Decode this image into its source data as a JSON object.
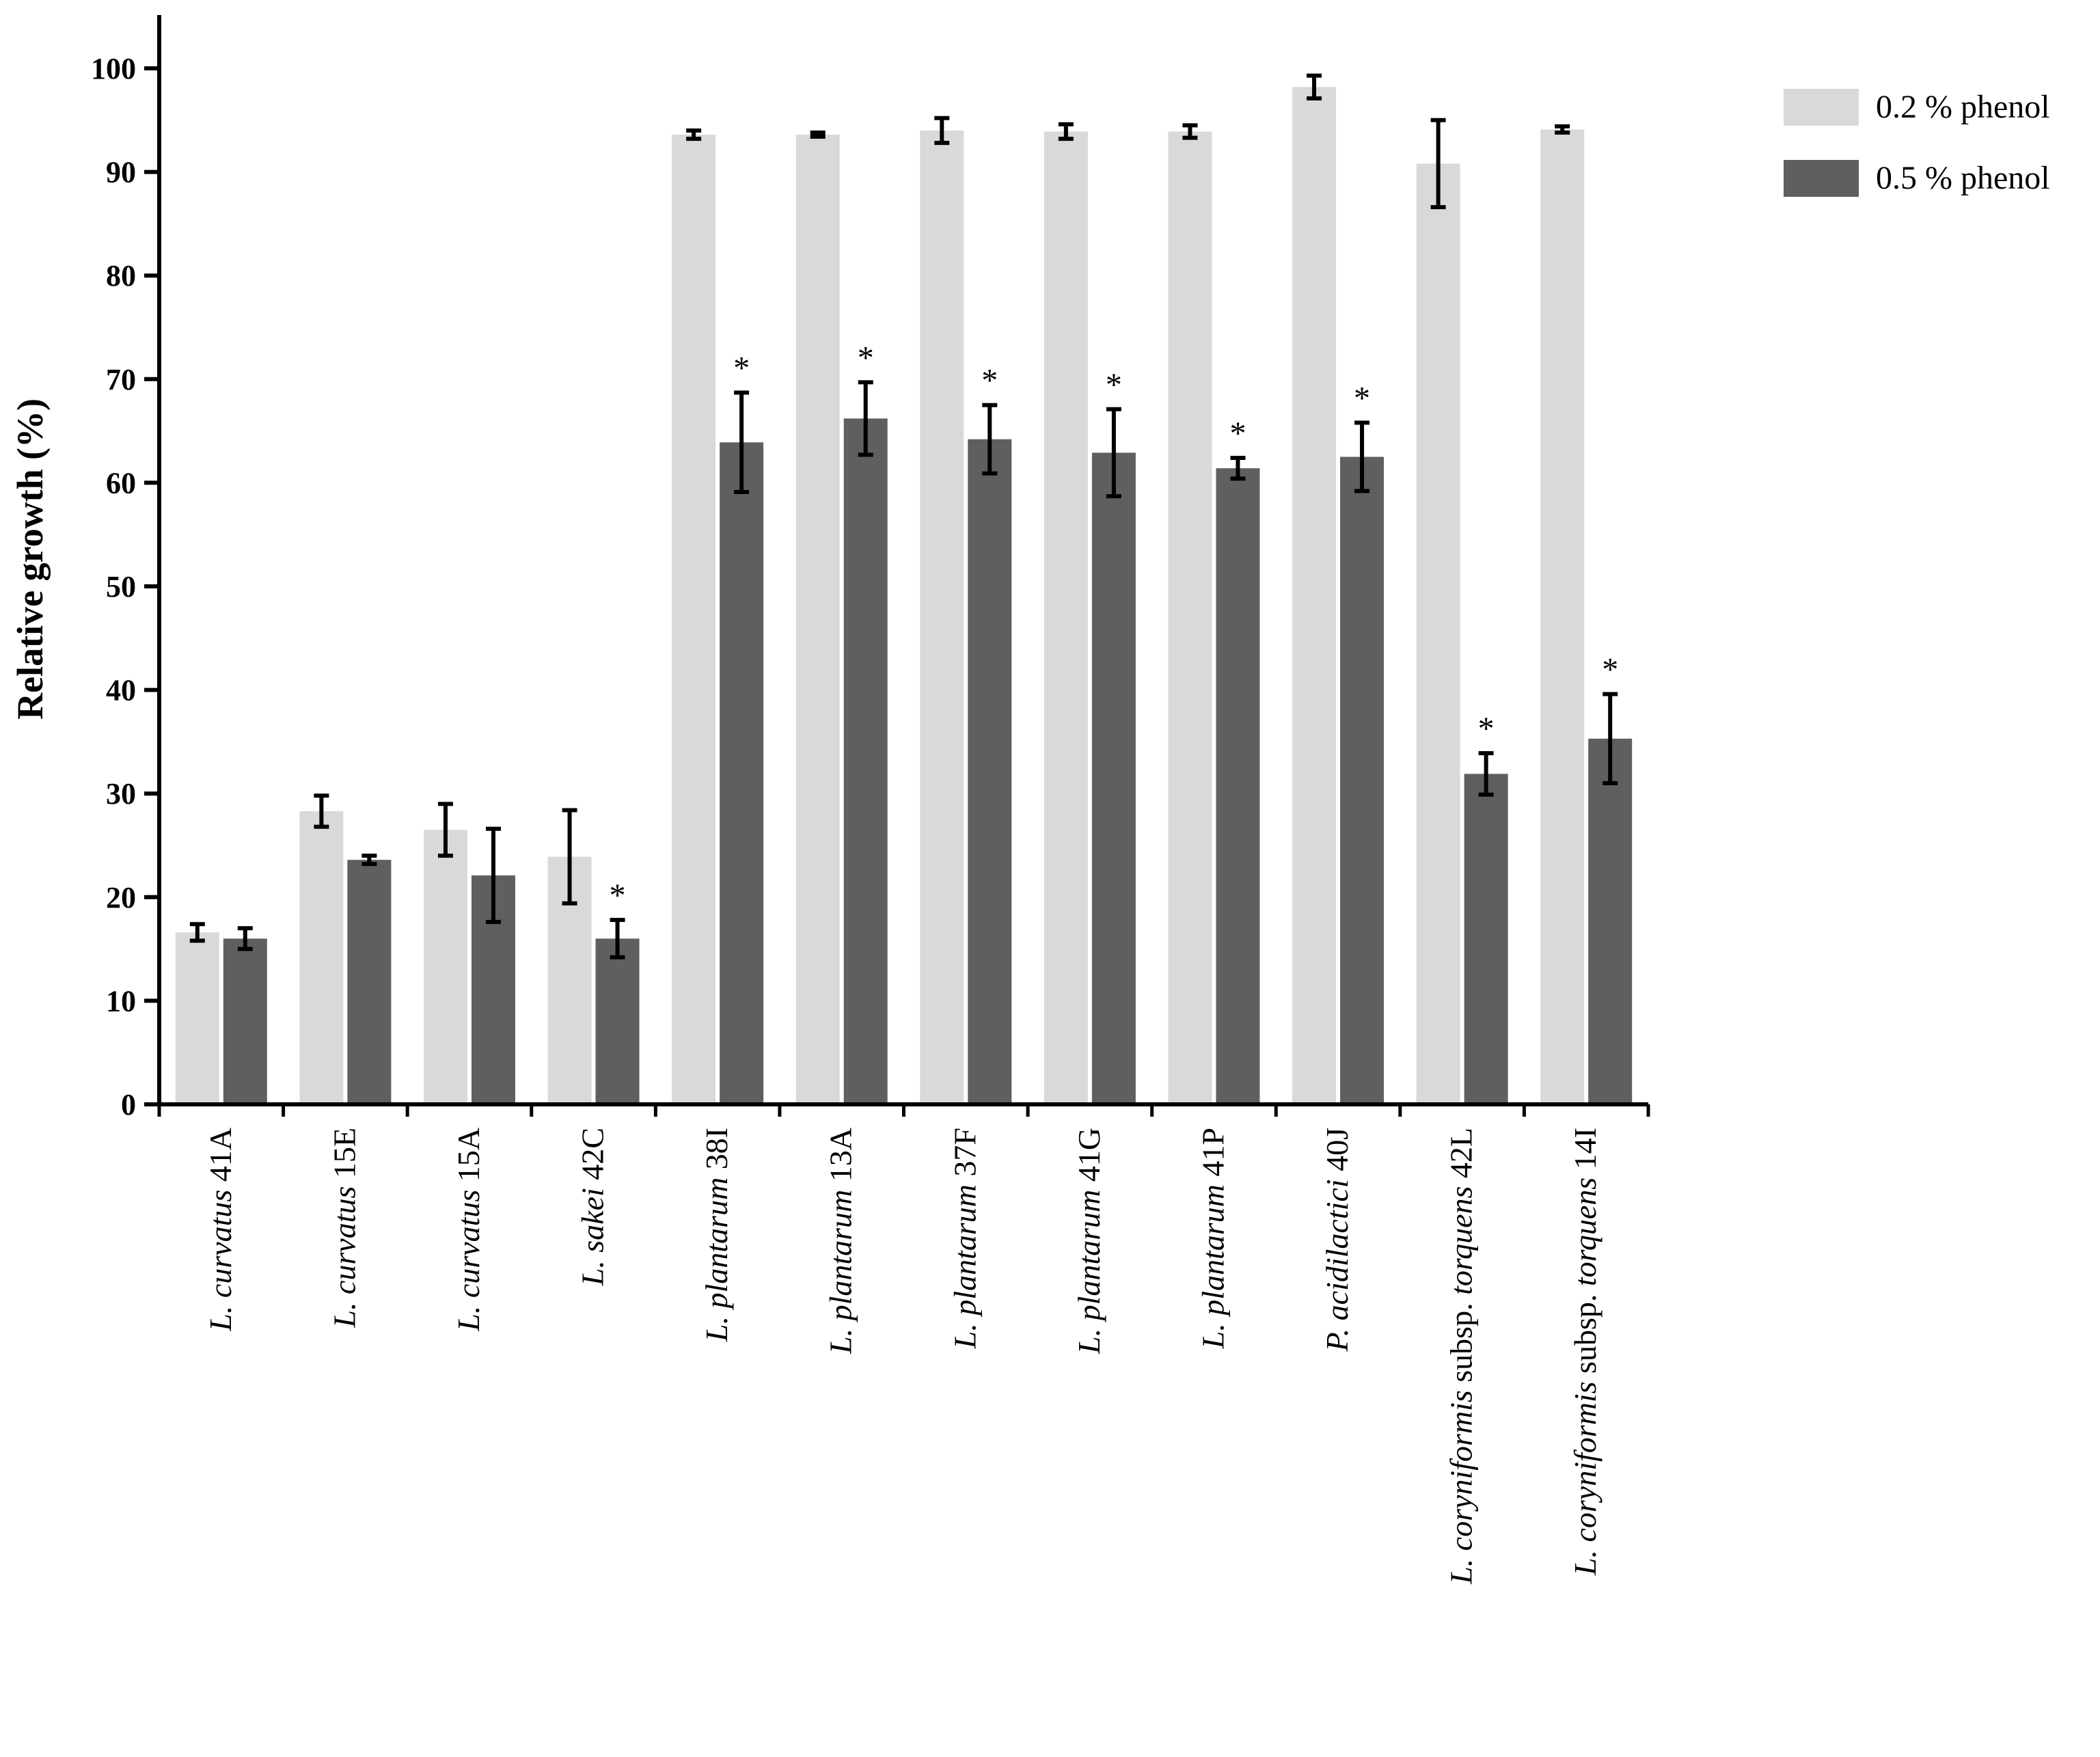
{
  "chart_data": {
    "type": "bar",
    "title": "",
    "xlabel": "",
    "ylabel": "Relative growth (%)",
    "ylim": [
      0,
      100
    ],
    "yticks": [
      0,
      10,
      20,
      30,
      40,
      50,
      60,
      70,
      80,
      90,
      100
    ],
    "grid": false,
    "legend_position": "top-right",
    "categories": [
      {
        "italic": "L. curvatus",
        "rest": " 41A"
      },
      {
        "italic": "L. curvatus",
        "rest": " 15E"
      },
      {
        "italic": "L. curvatus",
        "rest": " 15A"
      },
      {
        "italic": "L. sakei",
        "rest": " 42C"
      },
      {
        "italic": "L. plantarum",
        "rest": " 38I"
      },
      {
        "italic": "L. plantarum",
        "rest": " 13A"
      },
      {
        "italic": "L. plantarum",
        "rest": " 37F"
      },
      {
        "italic": "L. plantarum",
        "rest": " 41G"
      },
      {
        "italic": "L. plantarum",
        "rest": " 41P"
      },
      {
        "italic": "P. acidilactici",
        "rest": " 40J"
      },
      {
        "italic": "L. coryniformis",
        "rest": " subsp. ",
        "italic2": "torquens",
        "rest2": " 42L"
      },
      {
        "italic": "L. coryniformis",
        "rest": " subsp. ",
        "italic2": "torquens",
        "rest2": " 14I"
      }
    ],
    "series": [
      {
        "name": "0.2 % phenol",
        "color": "#d9d9d9",
        "values": [
          16.6,
          28.3,
          26.5,
          23.9,
          93.6,
          93.6,
          94.0,
          93.9,
          93.9,
          98.2,
          90.8,
          94.1
        ],
        "errors": [
          0.8,
          1.5,
          2.5,
          4.5,
          0.4,
          0.2,
          1.2,
          0.7,
          0.6,
          1.1,
          4.2,
          0.3
        ],
        "significant": [
          false,
          false,
          false,
          false,
          false,
          false,
          false,
          false,
          false,
          false,
          false,
          false
        ]
      },
      {
        "name": "0.5 % phenol",
        "color": "#5f5f5f",
        "values": [
          16.0,
          23.6,
          22.1,
          16.0,
          63.9,
          66.2,
          64.2,
          62.9,
          61.4,
          62.5,
          31.9,
          35.3
        ],
        "errors": [
          1.0,
          0.4,
          4.5,
          1.8,
          4.8,
          3.5,
          3.3,
          4.2,
          1.0,
          3.3,
          2.0,
          4.3
        ],
        "significant": [
          false,
          false,
          false,
          true,
          true,
          true,
          true,
          true,
          true,
          true,
          true,
          true
        ]
      }
    ],
    "annotation_symbol": "*"
  }
}
